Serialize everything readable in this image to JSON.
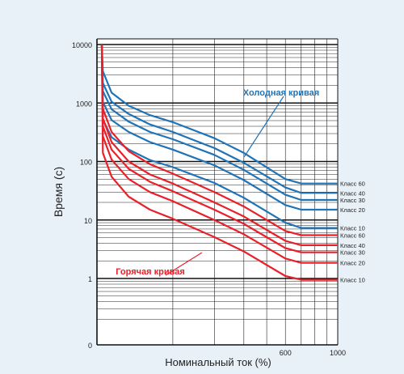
{
  "chart_data": {
    "type": "line",
    "title": "",
    "xlabel": "Номинальный ток (%)",
    "ylabel": "Время (с)",
    "y_scale": "log",
    "x_scale": "log",
    "yticks": [
      "0",
      "1",
      "10",
      "100",
      "1000",
      "10000"
    ],
    "xticks": [
      "600",
      "1000"
    ],
    "grid": true,
    "colors": {
      "cold": "#1f73b7",
      "hot": "#e8202a",
      "background": "#e9f1f8"
    },
    "annotations": {
      "cold": "Холодная кривая",
      "hot": "Горячая кривая"
    },
    "cold_curves": [
      {
        "label": "Класс 60",
        "x": [
          100,
          101,
          110,
          130,
          160,
          200,
          300,
          400,
          600,
          700,
          1000
        ],
        "y": [
          10000,
          3500,
          1500,
          900,
          620,
          470,
          250,
          140,
          50,
          42,
          42
        ]
      },
      {
        "label": "Класс 40",
        "x": [
          100,
          101,
          110,
          130,
          160,
          200,
          300,
          400,
          600,
          700,
          1000
        ],
        "y": [
          10000,
          2200,
          1050,
          650,
          430,
          320,
          170,
          95,
          36,
          29,
          29
        ]
      },
      {
        "label": "Класс 30",
        "x": [
          100,
          101,
          110,
          130,
          160,
          200,
          300,
          400,
          600,
          700,
          1000
        ],
        "y": [
          10000,
          1600,
          780,
          480,
          320,
          240,
          130,
          72,
          27,
          22,
          22
        ]
      },
      {
        "label": "Класс 20",
        "x": [
          100,
          101,
          110,
          130,
          160,
          200,
          300,
          400,
          600,
          700,
          1000
        ],
        "y": [
          10000,
          1050,
          510,
          320,
          215,
          160,
          86,
          48,
          18,
          15,
          15
        ]
      },
      {
        "label": "Класс 10",
        "x": [
          100,
          101,
          110,
          130,
          160,
          200,
          300,
          400,
          600,
          700,
          1000
        ],
        "y": [
          10000,
          520,
          260,
          160,
          106,
          80,
          43,
          24,
          9,
          7.3,
          7.3
        ]
      }
    ],
    "hot_curves": [
      {
        "label": "Класс 60",
        "x": [
          100,
          101,
          110,
          130,
          160,
          200,
          300,
          400,
          600,
          700,
          1000
        ],
        "y": [
          10000,
          800,
          320,
          150,
          90,
          62,
          30,
          17,
          6.5,
          5.5,
          5.5
        ]
      },
      {
        "label": "Класс 40",
        "x": [
          100,
          101,
          110,
          130,
          160,
          200,
          300,
          400,
          600,
          700,
          1000
        ],
        "y": [
          10000,
          550,
          215,
          100,
          60,
          42,
          20,
          11.5,
          4.4,
          3.7,
          3.7
        ]
      },
      {
        "label": "Класс 30",
        "x": [
          100,
          101,
          110,
          130,
          160,
          200,
          300,
          400,
          600,
          700,
          1000
        ],
        "y": [
          10000,
          400,
          160,
          75,
          45,
          31,
          15,
          8.6,
          3.3,
          2.8,
          2.8
        ]
      },
      {
        "label": "Класс 20",
        "x": [
          100,
          101,
          110,
          130,
          160,
          200,
          300,
          400,
          600,
          700,
          1000
        ],
        "y": [
          10000,
          270,
          108,
          50,
          30,
          21,
          10,
          5.7,
          2.2,
          1.85,
          1.85
        ]
      },
      {
        "label": "Класс 10",
        "x": [
          100,
          101,
          110,
          130,
          160,
          200,
          300,
          400,
          600,
          700,
          1000
        ],
        "y": [
          10000,
          140,
          55,
          25,
          15,
          10.5,
          5.1,
          2.9,
          1.1,
          0.95,
          0.95
        ]
      }
    ]
  }
}
